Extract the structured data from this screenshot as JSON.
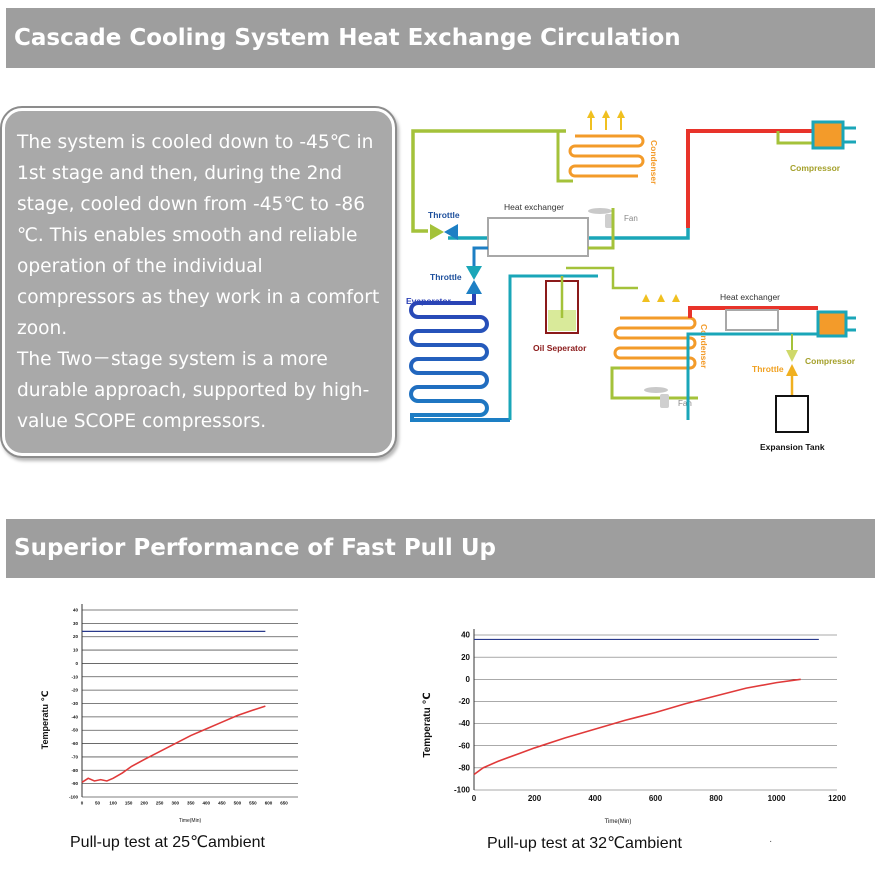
{
  "section1": {
    "title": "Cascade Cooling System Heat Exchange Circulation",
    "description": [
      "The system is cooled down to -45℃ in 1st stage and then, during the 2nd stage, cooled down from -45℃ to -86 ℃. This enables smooth and reliable operation of the individual compressors as they work in a comfort zoon.",
      "The Two－stage system is a more durable approach, supported by high-value SCOPE compressors."
    ]
  },
  "diagram_labels": {
    "condenser_top": "Condenser",
    "fan_top": "Fan",
    "compressor_top": "Compressor",
    "throttle_left": "Throttle",
    "heat_exchanger_mid": "Heat exchanger",
    "throttle_mid": "Throttle",
    "evaporator": "Evaporator",
    "oil_separator": "Oil Seperator",
    "condenser_bottom": "Condenser",
    "fan_bottom": "Fan",
    "heat_exchanger_right": "Heat exchanger",
    "compressor_bottom": "Compressor",
    "throttle_right": "Throttle",
    "expansion_tank": "Expansion Tank"
  },
  "colors": {
    "hot": "#e8332a",
    "warm": "#f39b2a",
    "lime": "#a4c23a",
    "cold": "#1d7fc4",
    "cyan": "#1aa6b8",
    "evaporator": "#2a3fb5",
    "header_bg": "#9e9e9e",
    "box_bg": "#a9a9a9",
    "chart_line": "#e03a3a"
  },
  "section2": {
    "title": "Superior  Performance of Fast Pull Up"
  },
  "chart_data": [
    {
      "type": "line",
      "title": "",
      "caption": "Pull-up test at 25℃ambient",
      "xlabel": "Time(Min)",
      "ylabel": "Temperatu   ℃",
      "x_ticks": [
        0,
        50,
        100,
        150,
        200,
        250,
        300,
        350,
        400,
        450,
        500,
        550,
        600,
        650
      ],
      "y_ticks": [
        40,
        30,
        20,
        10,
        0,
        -10,
        -20,
        -30,
        -40,
        -50,
        -60,
        -70,
        -80,
        -90,
        -100
      ],
      "xlim": [
        0,
        650
      ],
      "ylim": [
        -100,
        40
      ],
      "grid": true,
      "series": [
        {
          "color": "#e03a3a",
          "x": [
            0,
            20,
            40,
            60,
            80,
            100,
            130,
            160,
            200,
            250,
            300,
            350,
            400,
            450,
            500,
            550,
            590
          ],
          "y": [
            -89,
            -86,
            -88,
            -87,
            -88,
            -86,
            -82,
            -77,
            -72,
            -66,
            -60,
            -54,
            -49,
            -44,
            -39,
            -35,
            -32
          ]
        },
        {
          "color": "#2a3a8c",
          "x": [
            0,
            590
          ],
          "y": [
            24,
            24
          ]
        }
      ]
    },
    {
      "type": "line",
      "title": "",
      "caption": "Pull-up test at 32℃ambient",
      "xlabel": "Time(Min)",
      "ylabel": "Temperatu   ℃",
      "x_ticks": [
        0,
        200,
        400,
        600,
        800,
        1000,
        1200
      ],
      "y_ticks": [
        40,
        20,
        0,
        -20,
        -40,
        -60,
        -80,
        -100
      ],
      "xlim": [
        0,
        1200
      ],
      "ylim": [
        -100,
        40
      ],
      "grid": true,
      "series": [
        {
          "color": "#e03a3a",
          "x": [
            0,
            30,
            80,
            150,
            200,
            300,
            400,
            500,
            600,
            700,
            800,
            900,
            1000,
            1080
          ],
          "y": [
            -86,
            -80,
            -74,
            -67,
            -62,
            -53,
            -45,
            -37,
            -30,
            -22,
            -15,
            -8,
            -3,
            0
          ]
        },
        {
          "color": "#2a3a8c",
          "x": [
            0,
            1140
          ],
          "y": [
            36,
            36
          ]
        }
      ]
    }
  ]
}
